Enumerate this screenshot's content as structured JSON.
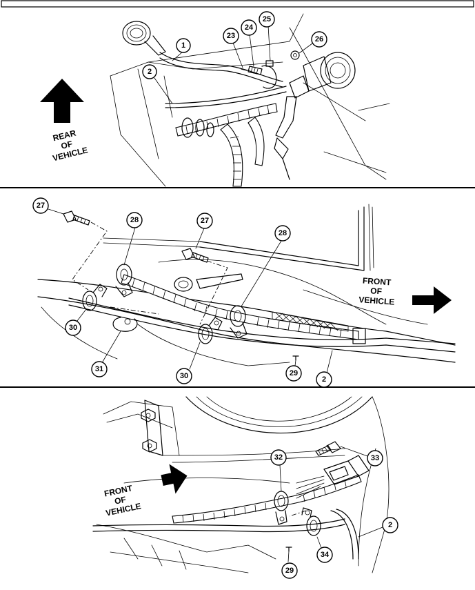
{
  "views": [
    {
      "name": "top",
      "direction": {
        "lines": [
          "REAR",
          "OF",
          "VEHICLE"
        ],
        "arrow": "up"
      },
      "callouts": [
        "1",
        "2",
        "23",
        "24",
        "25",
        "26"
      ]
    },
    {
      "name": "middle",
      "direction": {
        "lines": [
          "FRONT",
          "OF",
          "VEHICLE"
        ],
        "arrow": "right"
      },
      "callouts": [
        "27",
        "28",
        "27",
        "28",
        "30",
        "31",
        "30",
        "29",
        "2"
      ]
    },
    {
      "name": "bottom",
      "direction": {
        "lines": [
          "FRONT",
          "OF",
          "VEHICLE"
        ],
        "arrow": "right"
      },
      "callouts": [
        "32",
        "33",
        "2",
        "34",
        "29"
      ]
    }
  ],
  "colors": {
    "ink": "#000000",
    "paper": "#ffffff"
  }
}
